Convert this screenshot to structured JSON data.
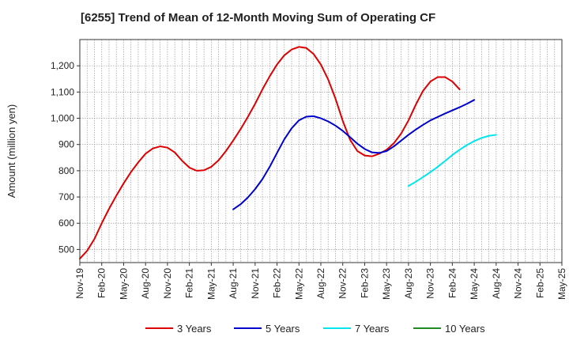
{
  "chart_data": {
    "type": "line",
    "title": "[6255]  Trend of Mean of 12-Month Moving Sum of Operating CF",
    "xlabel": "",
    "ylabel": "Amount (million yen)",
    "ylim": [
      450,
      1300
    ],
    "yticks": [
      500,
      600,
      700,
      800,
      900,
      1000,
      1100,
      1200
    ],
    "ytick_labels": [
      "500",
      "600",
      "700",
      "800",
      "900",
      "1,000",
      "1,100",
      "1,200"
    ],
    "x_start": "Nov-19",
    "x_count": 67,
    "xticks": [
      "Nov-19",
      "Feb-20",
      "May-20",
      "Aug-20",
      "Nov-20",
      "Feb-21",
      "May-21",
      "Aug-21",
      "Nov-21",
      "Feb-22",
      "May-22",
      "Aug-22",
      "Nov-22",
      "Feb-23",
      "May-23",
      "Aug-23",
      "Nov-23",
      "Feb-24",
      "May-24",
      "Aug-24",
      "Nov-24",
      "Feb-25",
      "May-25"
    ],
    "grid": true,
    "legend_position": "bottom",
    "series": [
      {
        "name": "3 Years",
        "color": "#dd0000",
        "start_index": 0,
        "values": [
          465,
          495,
          540,
          600,
          655,
          705,
          752,
          795,
          832,
          865,
          885,
          893,
          888,
          870,
          838,
          812,
          800,
          802,
          815,
          840,
          875,
          915,
          958,
          1005,
          1055,
          1110,
          1160,
          1205,
          1240,
          1262,
          1272,
          1268,
          1245,
          1205,
          1148,
          1075,
          990,
          918,
          875,
          858,
          855,
          865,
          880,
          905,
          942,
          992,
          1052,
          1105,
          1140,
          1157,
          1157,
          1140,
          1110
        ]
      },
      {
        "name": "5 Years",
        "color": "#0000cc",
        "start_index": 21,
        "values": [
          653,
          672,
          698,
          730,
          768,
          815,
          868,
          920,
          962,
          992,
          1006,
          1008,
          1000,
          988,
          972,
          952,
          928,
          903,
          883,
          870,
          868,
          875,
          893,
          915,
          937,
          957,
          975,
          992,
          1005,
          1018,
          1030,
          1042,
          1055,
          1070
        ]
      },
      {
        "name": "7 Years",
        "color": "#00e5ee",
        "start_index": 45,
        "values": [
          742,
          758,
          776,
          795,
          815,
          837,
          860,
          880,
          898,
          913,
          925,
          933,
          937
        ]
      },
      {
        "name": "10 Years",
        "color": "#228B22",
        "start_index": 0,
        "values": []
      }
    ]
  }
}
